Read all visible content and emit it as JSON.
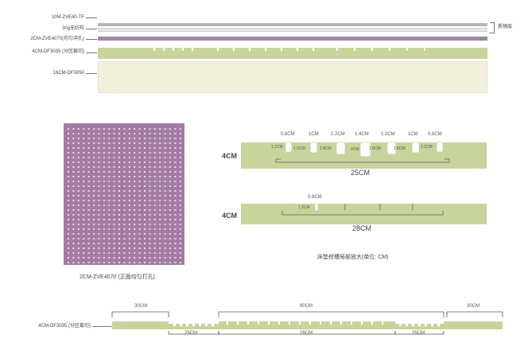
{
  "colors": {
    "gray_layer": "#b6b6b6",
    "white_layer": "#e6e6e6",
    "purple_layer": "#a683a8",
    "green_layer": "#c7d49b",
    "cream_layer": "#f2efdd",
    "purple_grid": "#a47ba4",
    "hole_dot": "#e9d8eb"
  },
  "stack": {
    "layer1": "10M-ZVE40-TF",
    "layer2": "30g无纺布",
    "layer3": "2CM-ZVE4070(均匀冲孔)",
    "layer4": "4CM-DF3035 (分区裁切)",
    "layer5": "16CM-DF3050",
    "bracket_label": "质镜层"
  },
  "grid_caption": "2CM-ZVE4070 (正面均匀打孔)",
  "detail1": {
    "thickness": "4CM",
    "width_label": "25CM",
    "top_labels": [
      "0.8CM",
      "1CM",
      "1.2CM",
      "1.4CM",
      "1.2CM",
      "1CM",
      "0.8CM"
    ],
    "inner_labels": [
      "1.2CM",
      "1.5CM",
      "1.8CM",
      "2CM",
      "1.8CM",
      "1.5CM",
      "1.2CM"
    ]
  },
  "detail2": {
    "thickness": "4CM",
    "width_label": "28CM",
    "top_label": "0.8CM",
    "inner_label": "1.2CM"
  },
  "detail_caption": "床垫挖槽局部放大(单位: CM)",
  "bottom": {
    "label": "4CM-DF3035 (分区裁切)",
    "top_labels": [
      "30CM",
      "90CM",
      "30CM"
    ],
    "bottom_labels": [
      "25CM",
      "28CM",
      "25CM"
    ]
  }
}
